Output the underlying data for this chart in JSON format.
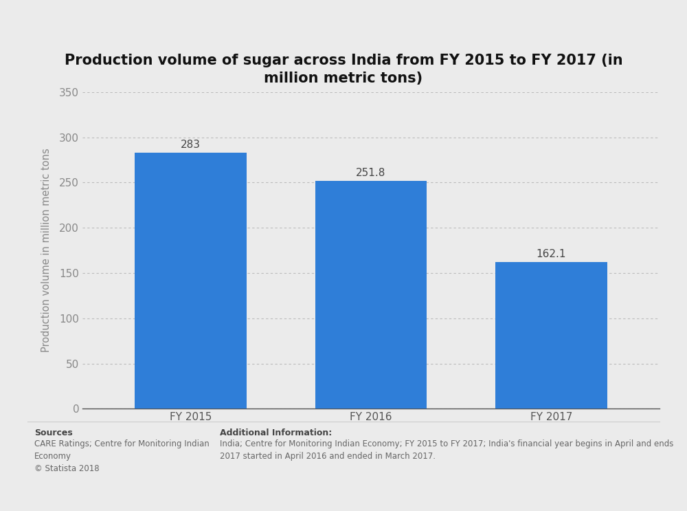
{
  "title": "Production volume of sugar across India from FY 2015 to FY 2017 (in\nmillion metric tons)",
  "categories": [
    "FY 2015",
    "FY 2016",
    "FY 2017"
  ],
  "values": [
    283,
    251.8,
    162.1
  ],
  "bar_color": "#2f7ed8",
  "ylabel": "Production volume in million metric tons",
  "ylim": [
    0,
    350
  ],
  "yticks": [
    0,
    50,
    100,
    150,
    200,
    250,
    300,
    350
  ],
  "background_color": "#ebebeb",
  "plot_background": "#ebebeb",
  "title_fontsize": 15,
  "label_fontsize": 10.5,
  "tick_fontsize": 11,
  "value_fontsize": 11,
  "sources_bold": "Sources",
  "sources_body": "CARE Ratings; Centre for Monitoring Indian\nEconomy\n© Statista 2018",
  "additional_bold": "Additional Information:",
  "additional_body": "India; Centre for Monitoring Indian Economy; FY 2015 to FY 2017; India's financial year begins in April and ends\n2017 started in April 2016 and ended in March 2017."
}
